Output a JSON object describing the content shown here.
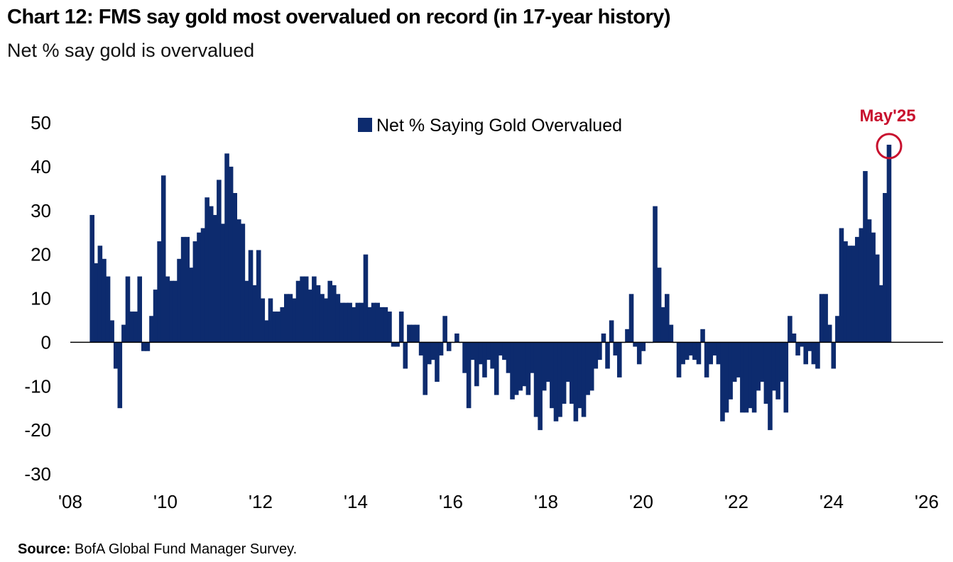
{
  "header": {
    "title": "Chart 12: FMS say gold most overvalued on record (in 17-year history)",
    "subtitle": "Net % say gold is overvalued"
  },
  "footer": {
    "source_label": "Source:",
    "source_text": "BofA Global Fund Manager Survey."
  },
  "colors": {
    "bar": "#0d2b6e",
    "annotation": "#c8102e",
    "axis": "#000000"
  },
  "chart_data": {
    "type": "bar",
    "title": "",
    "xlabel": "",
    "ylabel": "",
    "ylim": [
      -30,
      50
    ],
    "yticks": [
      50,
      40,
      30,
      20,
      10,
      0,
      -10,
      -20,
      -30
    ],
    "xlim": [
      2008,
      2026
    ],
    "xticks": [
      "'08",
      "'10",
      "'12",
      "'14",
      "'16",
      "'18",
      "'20",
      "'22",
      "'24",
      "'26"
    ],
    "grid": false,
    "legend_position": "top-center",
    "annotation": {
      "text": "May'25",
      "x": "May 2025",
      "y": 45
    },
    "series": [
      {
        "name": "Net % Saying Gold Overvalued",
        "start": "Jun 2008",
        "frequency": "monthly",
        "values": [
          29,
          18,
          22,
          19,
          15,
          5,
          -6,
          -15,
          4,
          15,
          7,
          7,
          15,
          -2,
          -2,
          6,
          12,
          23,
          38,
          15,
          14,
          14,
          19,
          24,
          24,
          17,
          23,
          25,
          26,
          33,
          31,
          29,
          37,
          27,
          43,
          40,
          34,
          28,
          27,
          14,
          21,
          13,
          21,
          10,
          5,
          10,
          7,
          7,
          8,
          11,
          11,
          10,
          14,
          15,
          15,
          12,
          15,
          13,
          11,
          10,
          14,
          13,
          11,
          9,
          9,
          9,
          8,
          9,
          9,
          20,
          8,
          9,
          9,
          8,
          8,
          7,
          -1,
          -1,
          7,
          -6,
          4,
          4,
          4,
          -3,
          -12,
          -5,
          -4,
          -9,
          -3,
          6,
          -2,
          0,
          2,
          0,
          -7,
          -15,
          -4,
          -10,
          -5,
          -8,
          -4,
          -6,
          -12,
          -3,
          -4,
          -7,
          -13,
          -12,
          -11,
          -10,
          -12,
          -7,
          -17,
          -20,
          -11,
          -9,
          -15,
          -18,
          -17,
          -14,
          -9,
          -14,
          -18,
          -15,
          -17,
          -12,
          -11,
          -6,
          -4,
          2,
          -6,
          5,
          -3,
          -8,
          0,
          3,
          11,
          -1,
          -5,
          -2,
          0,
          0,
          31,
          17,
          8,
          11,
          4,
          0,
          -8,
          -5,
          -4,
          -3,
          -4,
          -5,
          3,
          -8,
          -5,
          -3,
          -5,
          -18,
          -16,
          -13,
          -9,
          -8,
          -16,
          -16,
          -15,
          -16,
          -11,
          -9,
          -14,
          -20,
          -11,
          -13,
          -9,
          -16,
          6,
          2,
          -3,
          -1,
          -5,
          -2,
          -5,
          -6,
          11,
          11,
          4,
          -6,
          6,
          26,
          23,
          22,
          22,
          24,
          26,
          39,
          28,
          25,
          20,
          13,
          34,
          45
        ]
      }
    ]
  }
}
